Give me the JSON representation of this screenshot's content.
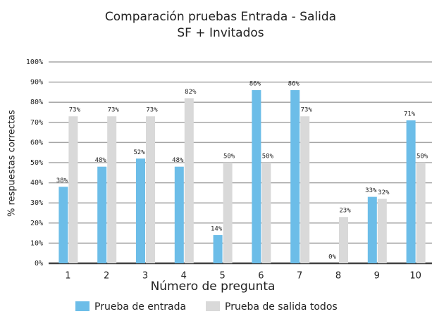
{
  "chart_data": {
    "type": "bar",
    "title": "Comparación pruebas Entrada - Salida",
    "subtitle": "SF + Invitados",
    "x_label": "Número de pregunta",
    "y_label": "% respuestas correctas",
    "categories": [
      "1",
      "2",
      "3",
      "4",
      "5",
      "6",
      "7",
      "8",
      "9",
      "10"
    ],
    "series": [
      {
        "name": "Prueba de entrada",
        "color": "#6cbde8",
        "values": [
          38,
          48,
          52,
          48,
          14,
          86,
          86,
          0,
          33,
          71
        ],
        "value_labels": [
          "38%",
          "48%",
          "52%",
          "48%",
          "14%",
          "86%",
          "86%",
          "0%",
          "33%",
          "71%"
        ]
      },
      {
        "name": "Prueba de salida todos",
        "color": "#d9d9d9",
        "values": [
          73,
          73,
          73,
          82,
          50,
          50,
          73,
          23,
          32,
          50
        ],
        "value_labels": [
          "73%",
          "73%",
          "73%",
          "82%",
          "50%",
          "50%",
          "73%",
          "23%",
          "32%",
          "50%"
        ]
      }
    ],
    "ylim": [
      0,
      100
    ],
    "yticks": [
      {
        "value": 0,
        "label": "0%"
      },
      {
        "value": 10,
        "label": "10%"
      },
      {
        "value": 20,
        "label": "20%"
      },
      {
        "value": 30,
        "label": "30%"
      },
      {
        "value": 40,
        "label": "40%"
      },
      {
        "value": 50,
        "label": "50%"
      },
      {
        "value": 60,
        "label": "60%"
      },
      {
        "value": 70,
        "label": "70%"
      },
      {
        "value": 80,
        "label": "80%"
      },
      {
        "value": 90,
        "label": "90%"
      },
      {
        "value": 100,
        "label": "100%"
      }
    ],
    "grid": true,
    "legend": "bottom"
  }
}
